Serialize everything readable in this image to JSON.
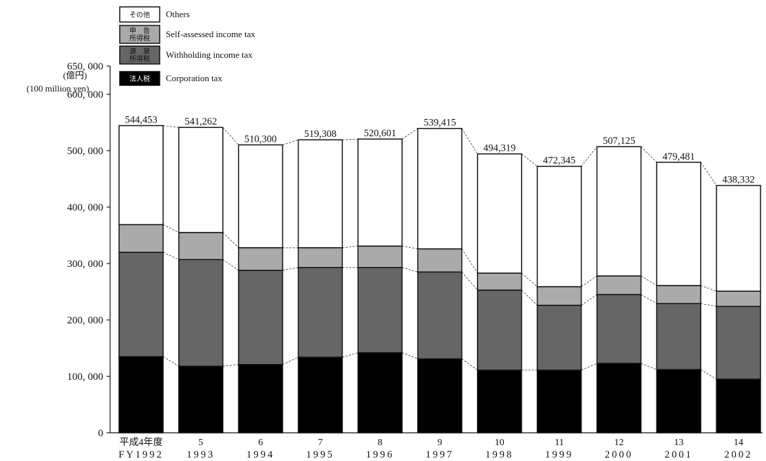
{
  "chart_data": {
    "type": "bar",
    "stacked": true,
    "y_unit": [
      "(億円)",
      "(100 million yen)"
    ],
    "ylim": [
      0,
      650000
    ],
    "yticks": [
      0,
      100000,
      200000,
      300000,
      400000,
      500000,
      600000,
      650000
    ],
    "ytick_labels": [
      "0",
      "100, 000",
      "200, 000",
      "300, 000",
      "400, 000",
      "500, 000",
      "600, 000",
      "650, 000"
    ],
    "categories": [
      {
        "jp": "平成4年度",
        "fy": "FY1992"
      },
      {
        "jp": "5",
        "fy": "1993"
      },
      {
        "jp": "6",
        "fy": "1994"
      },
      {
        "jp": "7",
        "fy": "1995"
      },
      {
        "jp": "8",
        "fy": "1996"
      },
      {
        "jp": "9",
        "fy": "1997"
      },
      {
        "jp": "10",
        "fy": "1998"
      },
      {
        "jp": "11",
        "fy": "1999"
      },
      {
        "jp": "12",
        "fy": "2000"
      },
      {
        "jp": "13",
        "fy": "2001"
      },
      {
        "jp": "14",
        "fy": "2002"
      }
    ],
    "series": [
      {
        "key": "corporation",
        "name": "Corporation tax",
        "jp_lines": [
          "法人税"
        ],
        "color": "#000000",
        "values": [
          135000,
          118000,
          121000,
          134000,
          142000,
          131000,
          111000,
          111000,
          123000,
          112000,
          95000
        ]
      },
      {
        "key": "withholding",
        "name": "Withholding income tax",
        "jp_lines": [
          "源　泉",
          "所得税"
        ],
        "color": "#666666",
        "values": [
          185000,
          189000,
          167000,
          159000,
          151000,
          154000,
          142000,
          115000,
          122000,
          117000,
          129000
        ]
      },
      {
        "key": "self_assessed",
        "name": "Self-assessed income tax",
        "jp_lines": [
          "申　告",
          "所得税"
        ],
        "color": "#aaaaaa",
        "values": [
          49000,
          48000,
          40000,
          35000,
          38000,
          41000,
          30000,
          33000,
          33000,
          32000,
          27000
        ]
      },
      {
        "key": "others",
        "name": "Others",
        "jp_lines": [
          "その他"
        ],
        "color": "#ffffff",
        "values": [
          175453,
          186262,
          182300,
          191308,
          189601,
          213415,
          211319,
          213345,
          229125,
          218481,
          187332
        ]
      }
    ],
    "totals": [
      544453,
      541262,
      510300,
      519308,
      520601,
      539415,
      494319,
      472345,
      507125,
      479481,
      438332
    ],
    "total_labels": [
      "544,453",
      "541,262",
      "510,300",
      "519,308",
      "520,601",
      "539,415",
      "494,319",
      "472,345",
      "507,125",
      "479,481",
      "438,332"
    ],
    "legend_position": "top-left",
    "grid": false
  }
}
